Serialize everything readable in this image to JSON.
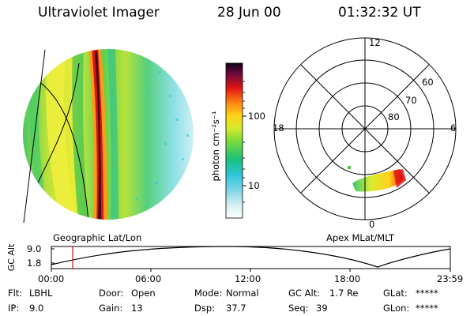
{
  "header": {
    "instrument": "Ultraviolet Imager",
    "date": "28 Jun 00",
    "time": "01:32:32 UT"
  },
  "colorbar": {
    "unit_label": "photon cm⁻²s⁻¹",
    "ticks": [
      "100",
      "10"
    ]
  },
  "left_panel": {
    "caption": "Geographic Lat/Lon"
  },
  "polar_panel": {
    "caption": "Apex MLat/MLT",
    "mlt_labels": {
      "top": "12",
      "left": "18",
      "right": "6",
      "bottom": "0"
    },
    "lat_labels": [
      "60",
      "70",
      "80"
    ]
  },
  "altitude_plot": {
    "ylabel": "GC Alt",
    "yticks": [
      "9.0",
      "1.8"
    ],
    "xticks": [
      "00:00",
      "06:00",
      "12:00",
      "18:00",
      "23:59"
    ],
    "current_time_marker": "01:32:32"
  },
  "info": {
    "filter": {
      "label": "Flt:",
      "value": "LBHL"
    },
    "ip": {
      "label": "IP:",
      "value": "9.0"
    },
    "door": {
      "label": "Door:",
      "value": "Open"
    },
    "gain": {
      "label": "Gain:",
      "value": "13"
    },
    "mode": {
      "label": "Mode:",
      "value": "Normal"
    },
    "dsp": {
      "label": "Dsp:",
      "value": "37.7"
    },
    "gc_alt": {
      "label": "GC Alt:",
      "value": "1.7 Re"
    },
    "seq": {
      "label": "Seq:",
      "value": "39"
    },
    "glat": {
      "label": "GLat:",
      "value": "*****"
    },
    "glon": {
      "label": "GLon:",
      "value": "*****"
    }
  }
}
